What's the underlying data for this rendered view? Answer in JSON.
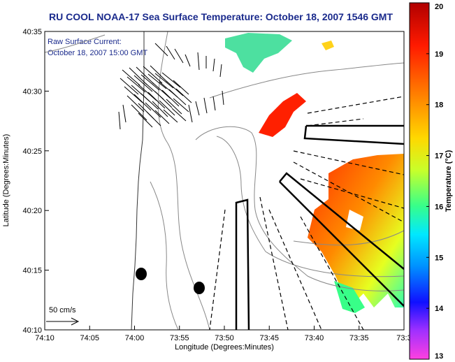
{
  "chart_data": {
    "type": "heatmap",
    "title": "RU COOL  NOAA-17  Sea Surface Temperature:  October 18, 2007 1546 GMT",
    "xlabel": "Longitude (Degrees:Minutes)",
    "ylabel": "Latitude (Degrees:Minutes)",
    "annotation": [
      "Raw Surface Current:",
      "October 18, 2007 15:00 GMT"
    ],
    "scale_label": "50 cm/s",
    "x_ticks": [
      "74:10",
      "74:05",
      "74:00",
      "73:55",
      "73:50",
      "73:45",
      "73:40",
      "73:35",
      "73:3"
    ],
    "y_ticks": [
      "40:35",
      "40:30",
      "40:25",
      "40:20",
      "40:15",
      "40:10"
    ],
    "colorbar": {
      "label": "Temperature (°C)",
      "min": 13,
      "max": 20,
      "ticks": [
        "20",
        "19",
        "18",
        "17",
        "16",
        "15",
        "14",
        "13"
      ]
    },
    "grid": false
  }
}
